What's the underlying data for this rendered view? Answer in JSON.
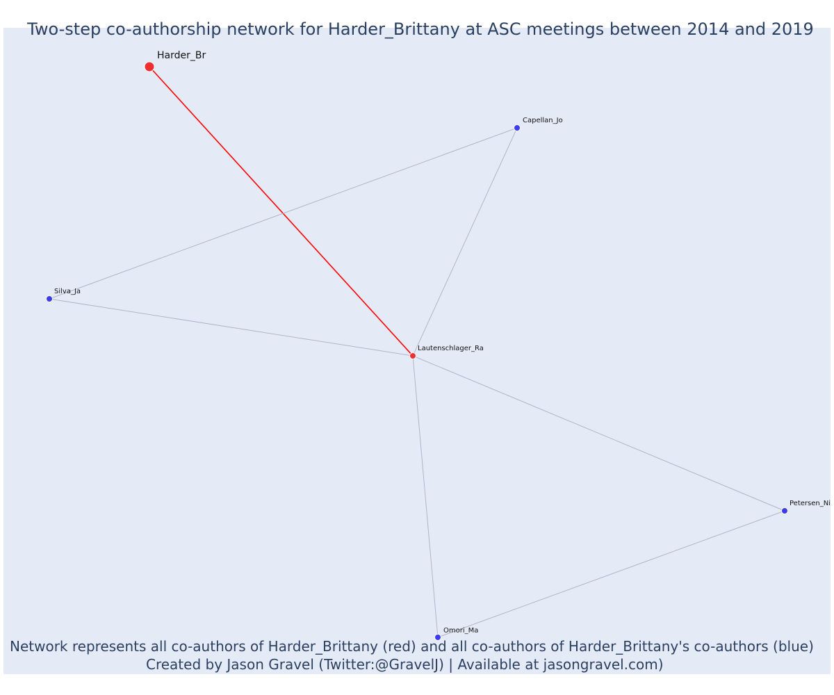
{
  "title": "Two-step co-authorship network for Harder_Brittany at ASC meetings between 2014 and 2019",
  "footer_line1": "Network represents all co-authors of Harder_Brittany (red) and all co-authors of Harder_Brittany's co-authors (blue)",
  "footer_line2": "Created by Jason Gravel (Twitter:@GravelJ) | Available at jasongravel.com)",
  "colors": {
    "background": "#e5ebf6",
    "focal": "#ef2f2f",
    "coauthor": "#ef2f2f",
    "second_step": "#3b3bef",
    "focal_edge": "#ff0000",
    "other_edge": "#b0b4c8",
    "text": "#2a3f5f"
  },
  "nodes": [
    {
      "id": "Harder_Br",
      "label": "Harder_Br",
      "group": "focal"
    },
    {
      "id": "Lautenschlager_Ra",
      "label": "Lautenschlager_Ra",
      "group": "coauthor"
    },
    {
      "id": "Capellan_Jo",
      "label": "Capellan_Jo",
      "group": "second_step"
    },
    {
      "id": "Silva_Ja",
      "label": "Silva_Ja",
      "group": "second_step"
    },
    {
      "id": "Petersen_Ni",
      "label": "Petersen_Ni",
      "group": "second_step"
    },
    {
      "id": "Omori_Ma",
      "label": "Omori_Ma",
      "group": "second_step"
    }
  ],
  "edges": [
    {
      "source": "Harder_Br",
      "target": "Lautenschlager_Ra",
      "type": "focal"
    },
    {
      "source": "Lautenschlager_Ra",
      "target": "Capellan_Jo",
      "type": "other"
    },
    {
      "source": "Lautenschlager_Ra",
      "target": "Silva_Ja",
      "type": "other"
    },
    {
      "source": "Lautenschlager_Ra",
      "target": "Petersen_Ni",
      "type": "other"
    },
    {
      "source": "Lautenschlager_Ra",
      "target": "Omori_Ma",
      "type": "other"
    },
    {
      "source": "Silva_Ja",
      "target": "Capellan_Jo",
      "type": "other"
    },
    {
      "source": "Omori_Ma",
      "target": "Petersen_Ni",
      "type": "other"
    }
  ]
}
